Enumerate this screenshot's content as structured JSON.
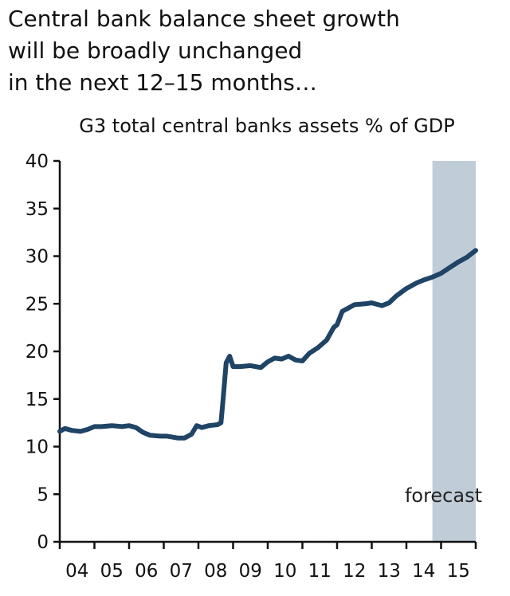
{
  "headline": {
    "lines": [
      "Central bank balance sheet growth",
      "will be broadly unchanged",
      "in the next 12–15 months…"
    ]
  },
  "chart_data": {
    "type": "line",
    "title": "G3 total central banks assets % of GDP",
    "xlabel": "",
    "ylabel": "",
    "ylim": [
      0,
      40
    ],
    "yticks": [
      0,
      5,
      10,
      15,
      20,
      25,
      30,
      35,
      40
    ],
    "ytick_labels": [
      "0",
      "5",
      "10",
      "15",
      "20",
      "25",
      "30",
      "35",
      "40"
    ],
    "xlim": [
      2004.0,
      2016.0
    ],
    "xtick_labels": [
      "04",
      "05",
      "06",
      "07",
      "08",
      "09",
      "10",
      "11",
      "12",
      "13",
      "14",
      "15"
    ],
    "forecast_region": {
      "start": 2014.75,
      "end": 2016.0,
      "label": "forecast",
      "color": "#c0ccd8"
    },
    "series": [
      {
        "name": "G3 total central banks assets % of GDP",
        "color": "#1f4466",
        "x": [
          2004.0,
          2004.15,
          2004.35,
          2004.6,
          2004.8,
          2005.0,
          2005.2,
          2005.5,
          2005.8,
          2006.0,
          2006.2,
          2006.4,
          2006.6,
          2006.9,
          2007.1,
          2007.4,
          2007.6,
          2007.8,
          2007.95,
          2008.1,
          2008.3,
          2008.55,
          2008.65,
          2008.7,
          2008.8,
          2008.9,
          2009.0,
          2009.2,
          2009.5,
          2009.8,
          2010.0,
          2010.2,
          2010.4,
          2010.6,
          2010.8,
          2011.0,
          2011.2,
          2011.45,
          2011.7,
          2011.9,
          2012.0,
          2012.15,
          2012.3,
          2012.5,
          2012.8,
          2013.0,
          2013.3,
          2013.5,
          2013.7,
          2014.0,
          2014.3,
          2014.5,
          2014.75,
          2015.0,
          2015.25,
          2015.5,
          2015.75,
          2016.0
        ],
        "values": [
          11.6,
          11.9,
          11.7,
          11.6,
          11.8,
          12.1,
          12.1,
          12.2,
          12.1,
          12.2,
          12.0,
          11.5,
          11.2,
          11.1,
          11.1,
          10.9,
          10.9,
          11.3,
          12.2,
          12.0,
          12.2,
          12.3,
          12.5,
          14.5,
          18.8,
          19.5,
          18.4,
          18.4,
          18.5,
          18.3,
          18.9,
          19.3,
          19.2,
          19.5,
          19.1,
          19.0,
          19.8,
          20.4,
          21.2,
          22.5,
          22.8,
          24.2,
          24.5,
          24.9,
          25.0,
          25.1,
          24.8,
          25.1,
          25.8,
          26.6,
          27.2,
          27.5,
          27.8,
          28.2,
          28.8,
          29.4,
          29.9,
          30.6
        ]
      }
    ]
  }
}
